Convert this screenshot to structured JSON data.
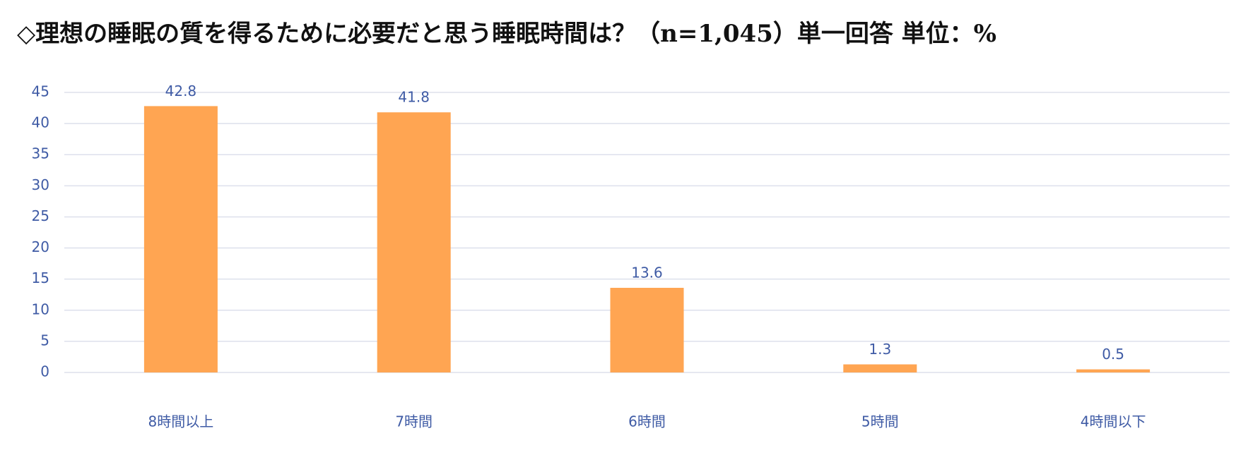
{
  "chart_data": {
    "type": "bar",
    "title": "◇理想の睡眠の質を得るために必要だと思う睡眠時間は？（n=1,045）単一回答 単位：%",
    "categories": [
      "8時間以上",
      "7時間",
      "6時間",
      "5時間",
      "4時間以下"
    ],
    "values": [
      42.8,
      41.8,
      13.6,
      1.3,
      0.5
    ],
    "color": "#ffa552",
    "ylim": [
      0,
      45
    ],
    "yticks": [
      0,
      5,
      10,
      15,
      20,
      25,
      30,
      35,
      40,
      45
    ],
    "grid": true
  }
}
